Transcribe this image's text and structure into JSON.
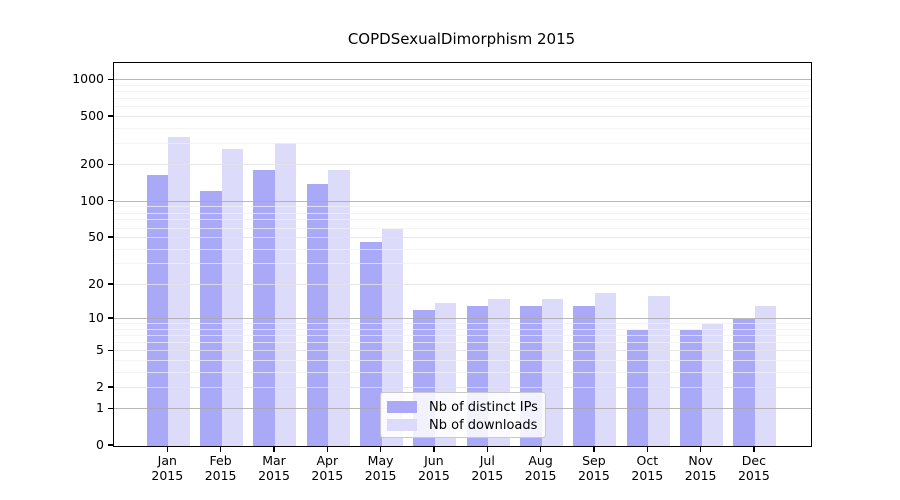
{
  "chart_data": {
    "type": "bar",
    "title": "COPDSexualDimorphism 2015",
    "categories": [
      "Jan",
      "Feb",
      "Mar",
      "Apr",
      "May",
      "Jun",
      "Jul",
      "Aug",
      "Sep",
      "Oct",
      "Nov",
      "Dec"
    ],
    "x_tick_year": "2015",
    "series": [
      {
        "name": "Nb of distinct IPs",
        "color": "#a9a9f7",
        "values": [
          168,
          124,
          183,
          141,
          46,
          12,
          13,
          13,
          13,
          8,
          8,
          10
        ]
      },
      {
        "name": "Nb of downloads",
        "color": "#dcdcfa",
        "values": [
          342,
          272,
          305,
          183,
          59,
          14,
          15,
          15,
          17,
          16,
          9,
          13
        ]
      }
    ],
    "y_scale": "log1p",
    "y_ticks": [
      0,
      1,
      2,
      5,
      10,
      20,
      50,
      100,
      200,
      500,
      1000
    ],
    "y_minor_gridlines": [
      3,
      4,
      6,
      7,
      8,
      9,
      30,
      40,
      60,
      70,
      80,
      90,
      300,
      400,
      600,
      700,
      800,
      900
    ],
    "ylim": [
      0,
      1390
    ],
    "grid": true,
    "legend_position": "inside-bottom-center",
    "colors": {
      "axis": "#000000",
      "major_power_gridline": "#a8a8a8",
      "labeled_gridline": "#e2e2e2",
      "minor_gridline": "#f0f0f0",
      "background": "#ffffff"
    }
  }
}
